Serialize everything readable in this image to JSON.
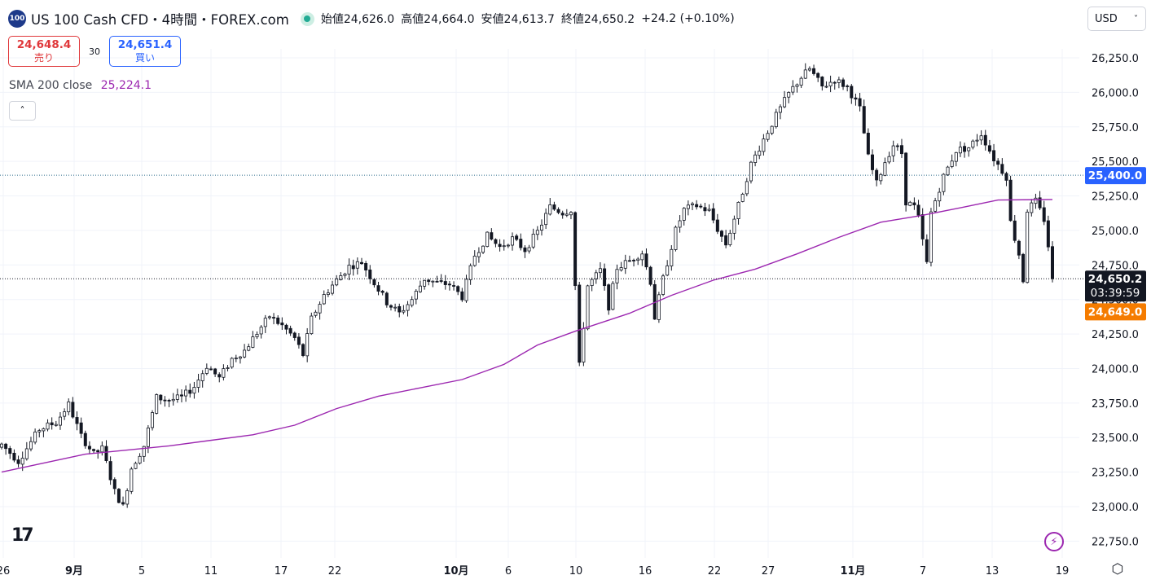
{
  "header": {
    "symbol_icon": "100",
    "title": "US 100 Cash CFD・4時間・FOREX.com",
    "market_status_icon": "market-open-dot",
    "open": "始値24,626.0",
    "high": "高値24,664.0",
    "low": "安値24,613.7",
    "close": "終値24,650.2",
    "change": "+24.2 (+0.10%)"
  },
  "trade": {
    "sell_price": "24,648.4",
    "sell_label": "売り",
    "spread": "30",
    "buy_price": "24,651.4",
    "buy_label": "買い"
  },
  "indicator": {
    "label": "SMA 200 close",
    "value": "25,224.1"
  },
  "currency": {
    "value": "USD"
  },
  "colors": {
    "up": "#131722",
    "down": "#131722",
    "sma": "#9c27b0",
    "alert_label": "#2962ff",
    "last_price_label": "#131722",
    "bid_label": "#f57c00",
    "grid": "#f0f3fa"
  },
  "chart_data": {
    "type": "candlestick",
    "y_ticks": [
      22750,
      23000,
      23250,
      23500,
      23750,
      24000,
      24250,
      24500,
      24750,
      25000,
      25250,
      25500,
      25750,
      26000,
      26250
    ],
    "y_tick_labels": [
      "22,750.0",
      "23,000.0",
      "23,250.0",
      "23,500.0",
      "23,750.0",
      "24,000.0",
      "24,250.0",
      "24,500.0",
      "24,750.0",
      "25,000.0",
      "25,250.0",
      "25,500.0",
      "25,750.0",
      "26,000.0",
      "26,250.0"
    ],
    "ylim": [
      22650,
      26330
    ],
    "x_labels": [
      "26",
      "9月",
      "5",
      "11",
      "17",
      "22",
      "10月",
      "6",
      "10",
      "16",
      "22",
      "27",
      "11月",
      "7",
      "13",
      "19"
    ],
    "bold_x_labels": [
      "9月",
      "10月",
      "11月"
    ],
    "price_path": [
      [
        0,
        23450
      ],
      [
        4,
        23330
      ],
      [
        9,
        23560
      ],
      [
        13,
        23610
      ],
      [
        16,
        23740
      ],
      [
        19,
        23510
      ],
      [
        22,
        23380
      ],
      [
        24,
        23420
      ],
      [
        27,
        23110
      ],
      [
        29,
        23000
      ],
      [
        31,
        23280
      ],
      [
        34,
        23440
      ],
      [
        37,
        23790
      ],
      [
        40,
        23770
      ],
      [
        43,
        23790
      ],
      [
        46,
        23870
      ],
      [
        49,
        24020
      ],
      [
        52,
        23930
      ],
      [
        55,
        24070
      ],
      [
        58,
        24130
      ],
      [
        61,
        24260
      ],
      [
        64,
        24380
      ],
      [
        67,
        24310
      ],
      [
        70,
        24220
      ],
      [
        72,
        24100
      ],
      [
        74,
        24360
      ],
      [
        77,
        24530
      ],
      [
        80,
        24640
      ],
      [
        83,
        24740
      ],
      [
        86,
        24770
      ],
      [
        89,
        24620
      ],
      [
        92,
        24480
      ],
      [
        95,
        24400
      ],
      [
        98,
        24500
      ],
      [
        101,
        24650
      ],
      [
        104,
        24620
      ],
      [
        107,
        24610
      ],
      [
        110,
        24520
      ],
      [
        113,
        24820
      ],
      [
        116,
        24960
      ],
      [
        119,
        24880
      ],
      [
        122,
        24940
      ],
      [
        125,
        24860
      ],
      [
        128,
        24990
      ],
      [
        131,
        25170
      ],
      [
        134,
        25130
      ],
      [
        136,
        25150
      ],
      [
        137,
        24600
      ],
      [
        138,
        24020
      ],
      [
        140,
        24600
      ],
      [
        143,
        24710
      ],
      [
        145,
        24450
      ],
      [
        147,
        24730
      ],
      [
        150,
        24780
      ],
      [
        153,
        24840
      ],
      [
        155,
        24630
      ],
      [
        156,
        24370
      ],
      [
        158,
        24650
      ],
      [
        161,
        25000
      ],
      [
        163,
        25150
      ],
      [
        166,
        25180
      ],
      [
        169,
        25140
      ],
      [
        171,
        25010
      ],
      [
        173,
        24900
      ],
      [
        176,
        25180
      ],
      [
        179,
        25480
      ],
      [
        182,
        25660
      ],
      [
        185,
        25830
      ],
      [
        188,
        25990
      ],
      [
        191,
        26110
      ],
      [
        193,
        26170
      ],
      [
        196,
        26040
      ],
      [
        199,
        26090
      ],
      [
        202,
        26040
      ],
      [
        205,
        25880
      ],
      [
        207,
        25530
      ],
      [
        209,
        25340
      ],
      [
        211,
        25500
      ],
      [
        213,
        25620
      ],
      [
        215,
        25560
      ],
      [
        216,
        25210
      ],
      [
        218,
        25170
      ],
      [
        219,
        25090
      ],
      [
        221,
        24760
      ],
      [
        222,
        25130
      ],
      [
        225,
        25390
      ],
      [
        228,
        25580
      ],
      [
        231,
        25600
      ],
      [
        234,
        25700
      ],
      [
        237,
        25520
      ],
      [
        240,
        25390
      ],
      [
        241,
        25060
      ],
      [
        243,
        24830
      ],
      [
        244,
        24640
      ],
      [
        245,
        25150
      ],
      [
        247,
        25210
      ],
      [
        249,
        25080
      ],
      [
        250,
        24890
      ],
      [
        251,
        24650
      ]
    ],
    "candle_count": 252,
    "sma_200": [
      [
        0,
        23250
      ],
      [
        20,
        23380
      ],
      [
        40,
        23440
      ],
      [
        60,
        23520
      ],
      [
        70,
        23590
      ],
      [
        80,
        23710
      ],
      [
        90,
        23800
      ],
      [
        100,
        23860
      ],
      [
        110,
        23920
      ],
      [
        120,
        24030
      ],
      [
        128,
        24170
      ],
      [
        137,
        24270
      ],
      [
        150,
        24400
      ],
      [
        160,
        24530
      ],
      [
        170,
        24640
      ],
      [
        180,
        24720
      ],
      [
        190,
        24830
      ],
      [
        200,
        24950
      ],
      [
        210,
        25060
      ],
      [
        220,
        25110
      ],
      [
        230,
        25170
      ],
      [
        238,
        25220
      ],
      [
        251,
        25224.1
      ]
    ],
    "last_close": 24650.2,
    "last_close_label": "24,650.2",
    "countdown": "03:39:59",
    "bid_price": 24649.0,
    "bid_label": "24,649.0",
    "alert_price": 25400.0,
    "alert_label": "25,400.0"
  }
}
